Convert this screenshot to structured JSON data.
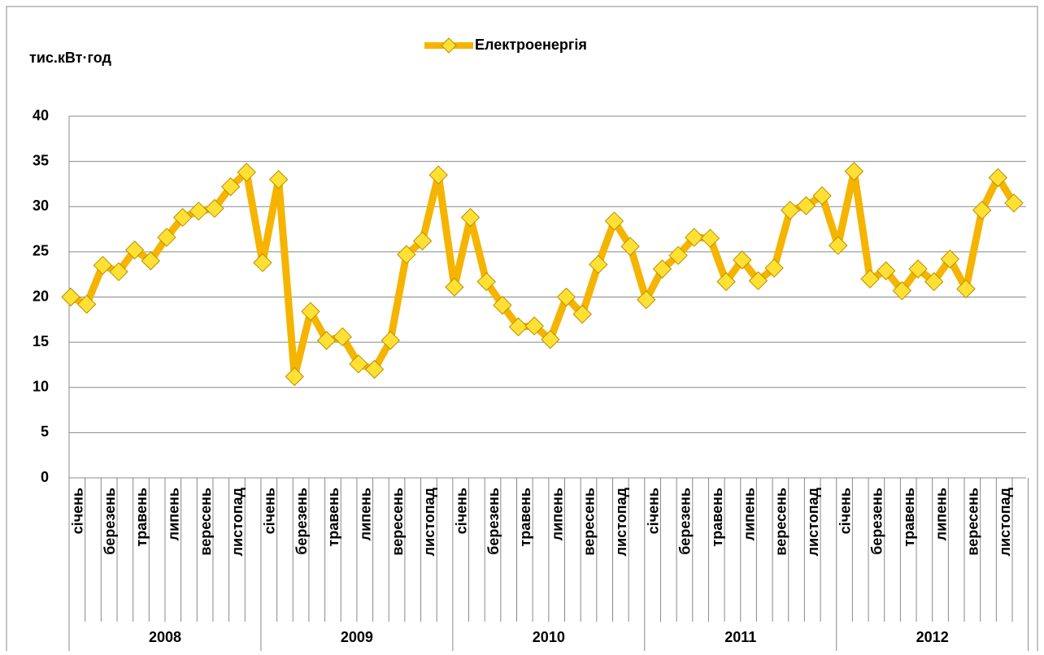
{
  "chart_data": {
    "type": "line",
    "y_label": "тис.кВт·год",
    "categories": [
      "січень",
      null,
      "березень",
      null,
      "травень",
      null,
      "липень",
      null,
      "вересень",
      null,
      "листопад",
      null,
      "січень",
      null,
      "березень",
      null,
      "травень",
      null,
      "липень",
      null,
      "вересень",
      null,
      "листопад",
      null,
      "січень",
      null,
      "березень",
      null,
      "травень",
      null,
      "липень",
      null,
      "вересень",
      null,
      "листопад",
      null,
      "січень",
      null,
      "березень",
      null,
      "травень",
      null,
      "липень",
      null,
      "вересень",
      null,
      "листопад",
      null,
      "січень",
      null,
      "березень",
      null,
      "травень",
      null,
      "липень",
      null,
      "вересень",
      null,
      "листопад",
      null
    ],
    "groups": [
      "2008",
      "2009",
      "2010",
      "2011",
      "2012"
    ],
    "series": [
      {
        "name": "Електроенергія",
        "color": "#f5b400",
        "marker_color": "#ffe033",
        "values": [
          20.0,
          19.2,
          23.5,
          22.8,
          25.2,
          24.0,
          26.6,
          28.8,
          29.5,
          29.8,
          32.2,
          33.8,
          23.8,
          33.0,
          11.2,
          18.4,
          15.2,
          15.6,
          12.6,
          12.0,
          15.2,
          24.7,
          26.2,
          33.5,
          21.1,
          28.8,
          21.7,
          19.1,
          16.7,
          16.8,
          15.3,
          20.0,
          18.1,
          23.6,
          28.4,
          25.6,
          19.7,
          23.1,
          24.6,
          26.6,
          26.5,
          21.7,
          24.1,
          21.8,
          23.2,
          29.6,
          30.1,
          31.2,
          25.7,
          33.9,
          22.0,
          22.9,
          20.7,
          23.1,
          21.7,
          24.2,
          20.9,
          29.6,
          33.2,
          30.4
        ]
      }
    ],
    "ylim": [
      0,
      40
    ],
    "yticks": [
      0,
      5,
      10,
      15,
      20,
      25,
      30,
      35,
      40
    ],
    "grid": true,
    "legend": "top"
  }
}
